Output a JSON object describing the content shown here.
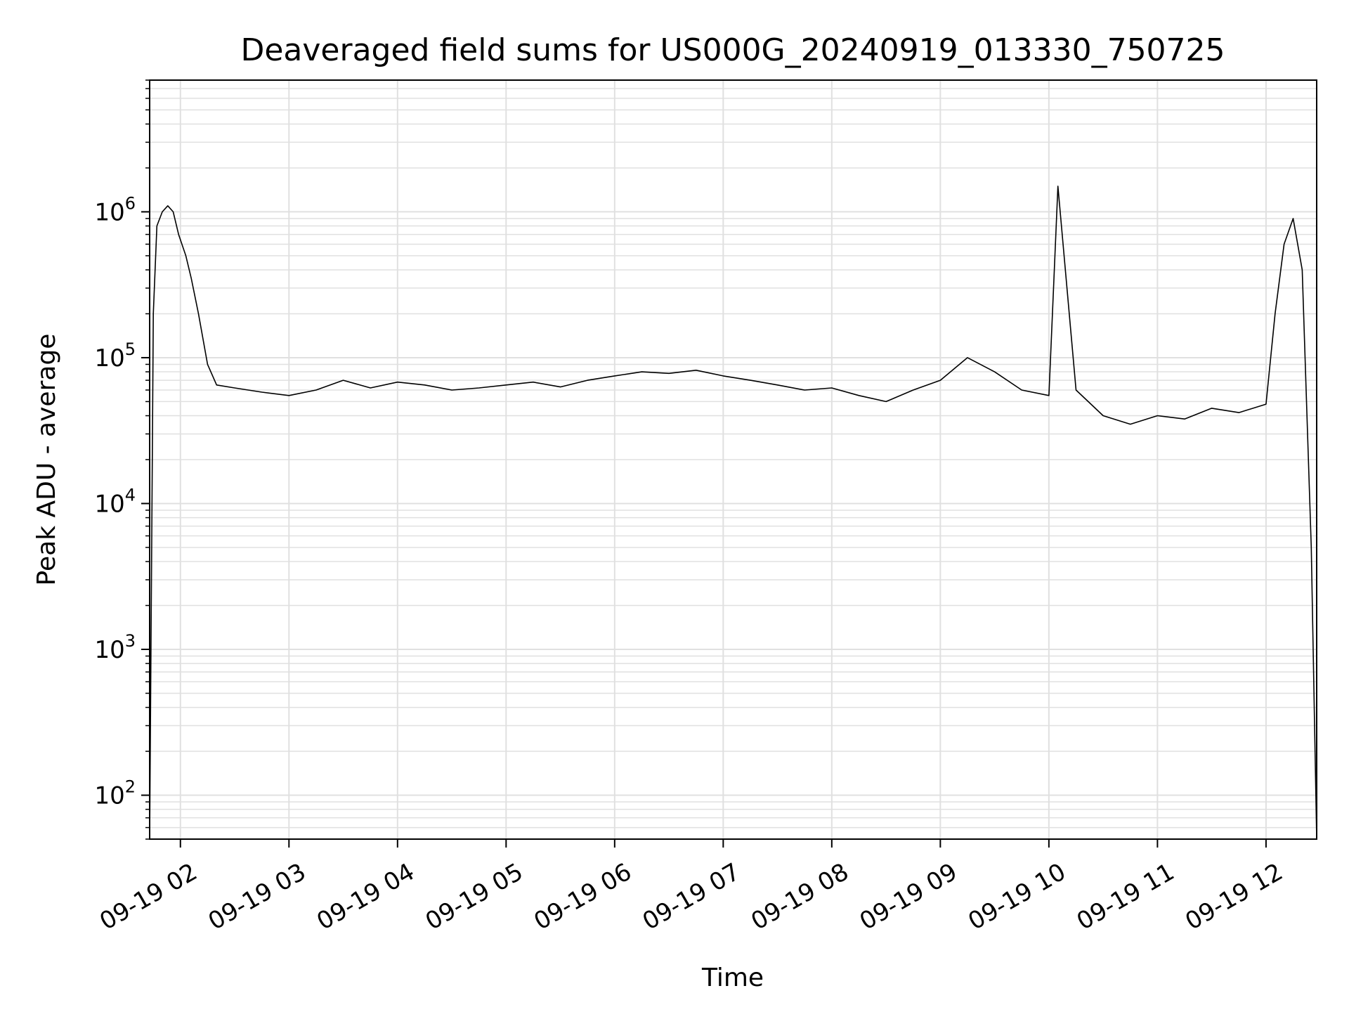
{
  "chart_data": {
    "type": "line",
    "title": "Deaveraged field sums for US000G_20240919_013330_750725",
    "xlabel": "Time",
    "ylabel": "Peak ADU - average",
    "yscale": "log",
    "ylim": [
      50,
      8000000
    ],
    "xlim": [
      "09-19 01:43",
      "09-19 12:28"
    ],
    "grid": true,
    "line_color": "#000000",
    "grid_color": "#e0e0e0",
    "x_ticks": [
      "09-19 02",
      "09-19 03",
      "09-19 04",
      "09-19 05",
      "09-19 06",
      "09-19 07",
      "09-19 08",
      "09-19 09",
      "09-19 10",
      "09-19 11",
      "09-19 12"
    ],
    "y_ticks": [
      {
        "base": "10",
        "exp": "2",
        "value": 100
      },
      {
        "base": "10",
        "exp": "3",
        "value": 1000
      },
      {
        "base": "10",
        "exp": "4",
        "value": 10000
      },
      {
        "base": "10",
        "exp": "5",
        "value": 100000
      },
      {
        "base": "10",
        "exp": "6",
        "value": 1000000
      }
    ],
    "series": [
      {
        "x": [
          "09-19 01:43",
          "09-19 01:45",
          "09-19 01:47",
          "09-19 01:50",
          "09-19 01:53",
          "09-19 01:56",
          "09-19 01:59",
          "09-19 02:03",
          "09-19 02:06",
          "09-19 02:10",
          "09-19 02:15",
          "09-19 02:20",
          "09-19 02:30",
          "09-19 02:45",
          "09-19 03:00",
          "09-19 03:15",
          "09-19 03:30",
          "09-19 03:45",
          "09-19 04:00",
          "09-19 04:15",
          "09-19 04:30",
          "09-19 04:45",
          "09-19 05:00",
          "09-19 05:15",
          "09-19 05:30",
          "09-19 05:45",
          "09-19 06:00",
          "09-19 06:15",
          "09-19 06:30",
          "09-19 06:45",
          "09-19 07:00",
          "09-19 07:15",
          "09-19 07:30",
          "09-19 07:45",
          "09-19 08:00",
          "09-19 08:15",
          "09-19 08:30",
          "09-19 08:45",
          "09-19 09:00",
          "09-19 09:15",
          "09-19 09:30",
          "09-19 09:45",
          "09-19 10:00",
          "09-19 10:05",
          "09-19 10:15",
          "09-19 10:30",
          "09-19 10:45",
          "09-19 11:00",
          "09-19 11:15",
          "09-19 11:30",
          "09-19 11:45",
          "09-19 12:00",
          "09-19 12:05",
          "09-19 12:10",
          "09-19 12:15",
          "09-19 12:20",
          "09-19 12:25",
          "09-19 12:28"
        ],
        "y": [
          50,
          200000,
          800000,
          1000000,
          1100000,
          1000000,
          700000,
          500000,
          350000,
          200000,
          90000,
          65000,
          62000,
          58000,
          55000,
          60000,
          70000,
          62000,
          68000,
          65000,
          60000,
          62000,
          65000,
          68000,
          63000,
          70000,
          75000,
          80000,
          78000,
          82000,
          75000,
          70000,
          65000,
          60000,
          62000,
          55000,
          50000,
          60000,
          70000,
          100000,
          80000,
          60000,
          55000,
          1500000,
          60000,
          40000,
          35000,
          40000,
          38000,
          45000,
          42000,
          48000,
          200000,
          600000,
          900000,
          400000,
          5000,
          50
        ]
      }
    ]
  }
}
